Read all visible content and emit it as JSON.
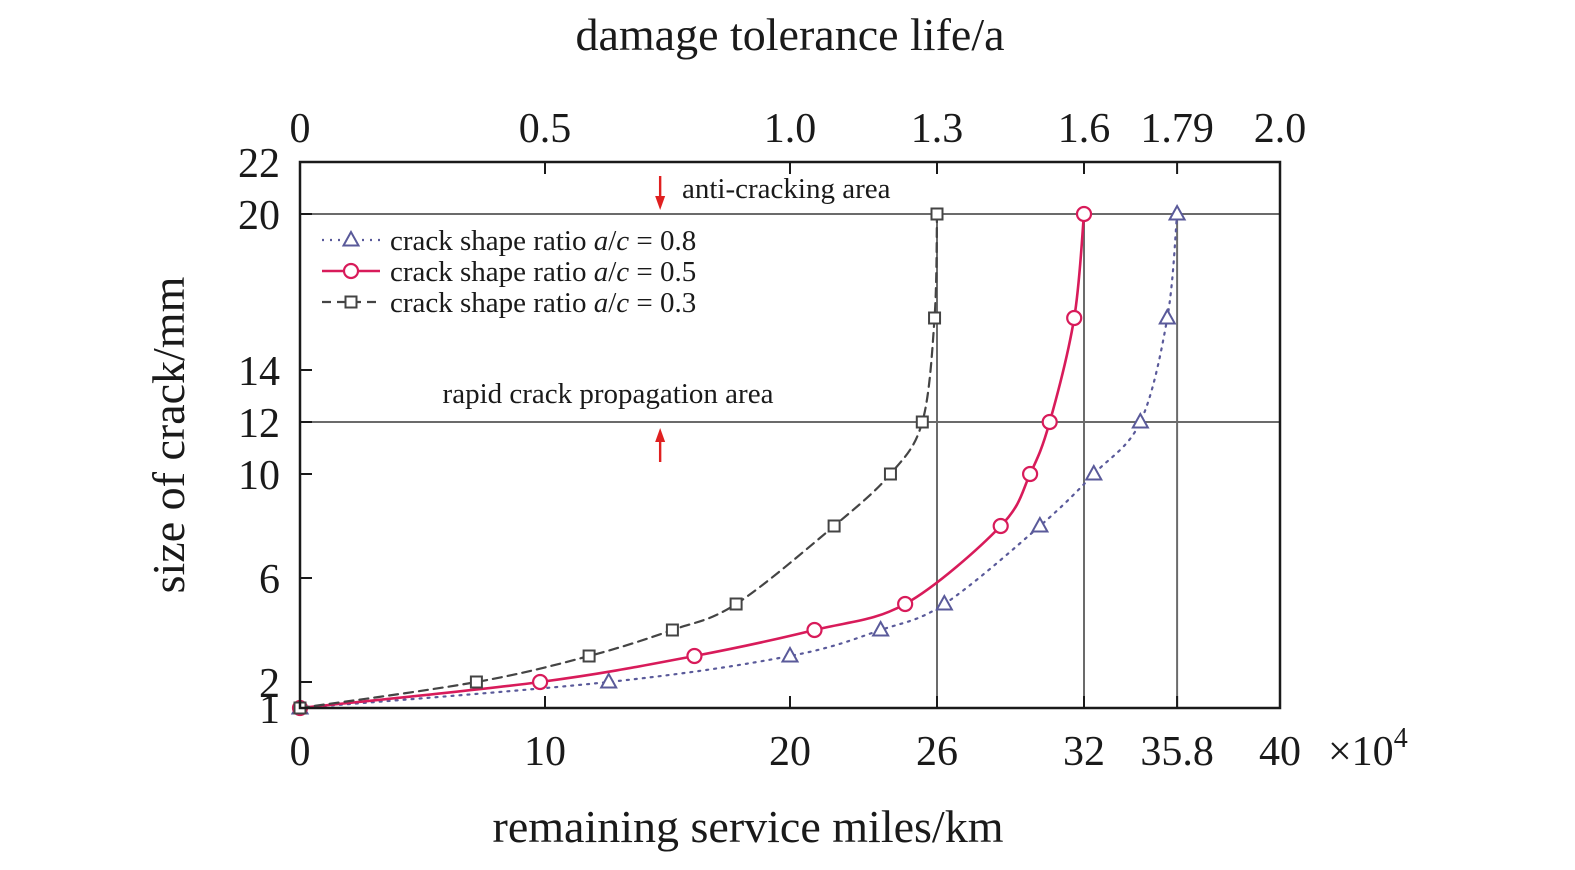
{
  "chart_data": {
    "type": "line",
    "title_top_axis": "damage tolerance life/a",
    "xlabel": "remaining service miles/km",
    "ylabel": "size of crack/mm",
    "x_multiplier": "×10",
    "x_multiplier_exp": "4",
    "xlim": [
      0,
      40
    ],
    "ylim": [
      1,
      22
    ],
    "x_ticks": [
      0,
      10,
      20,
      26,
      32,
      35.8,
      40
    ],
    "x_tick_labels": [
      "0",
      "10",
      "20",
      "26",
      "32",
      "35.8",
      "40"
    ],
    "y_ticks": [
      1,
      2,
      6,
      10,
      12,
      14,
      20,
      22
    ],
    "y_tick_labels": [
      "1",
      "2",
      "6",
      "10",
      "12",
      "14",
      "20",
      "22"
    ],
    "top_ticks": [
      0,
      0.5,
      1.0,
      1.3,
      1.6,
      1.79,
      2.0
    ],
    "top_tick_labels": [
      "0",
      "0.5",
      "1.0",
      "1.3",
      "1.6",
      "1.79",
      "2.0"
    ],
    "top_xlim": [
      0,
      2.0
    ],
    "reference_lines": {
      "horizontal": [
        12,
        20
      ],
      "vertical": [
        26,
        32,
        35.8
      ]
    },
    "annotations": [
      {
        "text": "anti-cracking area",
        "x": 14.7,
        "y": 21,
        "arrow": "down"
      },
      {
        "text": "rapid crack propagation area",
        "x": 14.7,
        "y": 11.2,
        "arrow": "up"
      }
    ],
    "legend_prefix": "crack shape ratio ",
    "legend_var": "a",
    "legend_slash": "/",
    "legend_var2": "c",
    "legend_suffix": " = ",
    "legend_placement": "upper-left",
    "series": [
      {
        "name": "crack shape ratio a/c = 0.8",
        "ratio": "0.8",
        "marker": "triangle",
        "line_style": "dotted",
        "color": "#5a5a9a",
        "x": [
          0,
          12.6,
          20.0,
          23.7,
          26.3,
          30.2,
          32.4,
          34.3,
          35.4,
          35.8
        ],
        "y": [
          1.0,
          2.0,
          3.0,
          4.0,
          5.0,
          8.0,
          10.0,
          12.0,
          16.0,
          20.0
        ]
      },
      {
        "name": "crack shape ratio a/c = 0.5",
        "ratio": "0.5",
        "marker": "circle",
        "line_style": "solid",
        "color": "#d81b5a",
        "x": [
          0,
          9.8,
          16.1,
          21.0,
          24.7,
          28.6,
          29.8,
          30.6,
          31.6,
          32.0
        ],
        "y": [
          1.0,
          2.0,
          3.0,
          4.0,
          5.0,
          8.0,
          10.0,
          12.0,
          16.0,
          20.0
        ]
      },
      {
        "name": "crack shape ratio a/c = 0.3",
        "ratio": "0.3",
        "marker": "square",
        "line_style": "dashed",
        "color": "#444444",
        "x": [
          0,
          7.2,
          11.8,
          15.2,
          17.8,
          21.8,
          24.1,
          25.4,
          25.9,
          26.0
        ],
        "y": [
          1.0,
          2.0,
          3.0,
          4.0,
          5.0,
          8.0,
          10.0,
          12.0,
          16.0,
          20.0
        ]
      }
    ]
  }
}
